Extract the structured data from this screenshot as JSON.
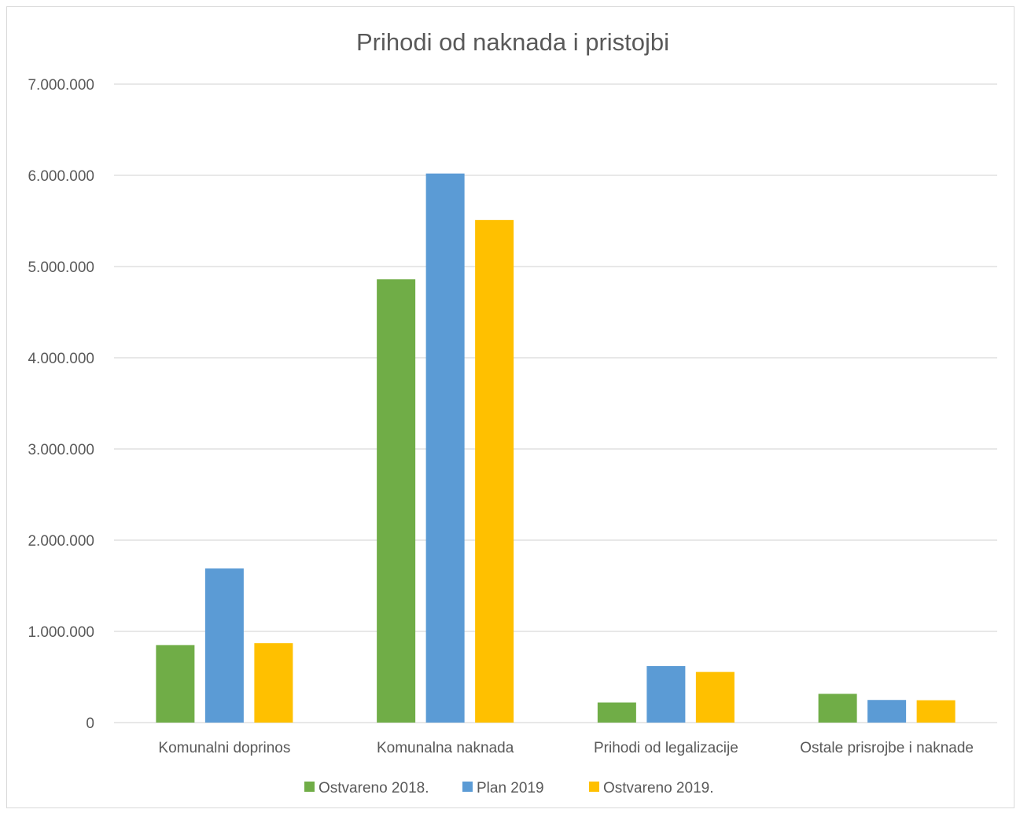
{
  "chart_data": {
    "type": "bar",
    "title": "Prihodi od naknada i pristojbi",
    "xlabel": "",
    "ylabel": "",
    "categories": [
      "Komunalni doprinos",
      "Komunalna naknada",
      "Prihodi od legalizacije",
      "Ostale prisrojbe i naknade"
    ],
    "series": [
      {
        "name": "Ostvareno 2018.",
        "color": "#70ad47",
        "values": [
          850000,
          4860000,
          220000,
          315000
        ]
      },
      {
        "name": "Plan 2019",
        "color": "#5b9bd5",
        "values": [
          1690000,
          6020000,
          620000,
          248000
        ]
      },
      {
        "name": "Ostvareno 2019.",
        "color": "#ffc000",
        "values": [
          870000,
          5510000,
          555000,
          245000
        ]
      }
    ],
    "ylim": [
      0,
      7000000
    ],
    "yticks": [
      0,
      1000000,
      2000000,
      3000000,
      4000000,
      5000000,
      6000000,
      7000000
    ],
    "ytick_labels": [
      "0",
      "1.000.000",
      "2.000.000",
      "3.000.000",
      "4.000.000",
      "5.000.000",
      "6.000.000",
      "7.000.000"
    ],
    "grid": true,
    "legend_position": "bottom"
  }
}
